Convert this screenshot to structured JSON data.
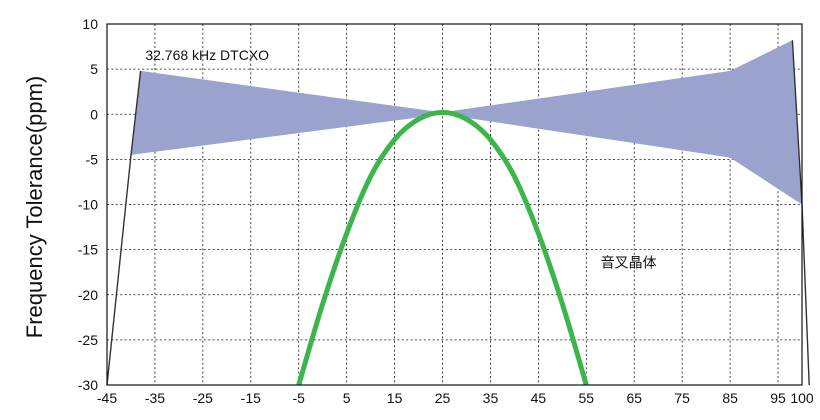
{
  "chart_data": {
    "type": "area",
    "title": "",
    "xlabel": "",
    "ylabel": "Frequency Tolerance(ppm)",
    "xlim": [
      -45,
      100
    ],
    "ylim": [
      -30,
      10
    ],
    "x_ticks": [
      -45,
      -35,
      -25,
      -15,
      -5,
      5,
      15,
      25,
      35,
      45,
      55,
      65,
      75,
      85,
      95,
      100
    ],
    "x_tick_labels": [
      "-45",
      "-35",
      "-25",
      "-15",
      "-5",
      "5",
      "15",
      "25",
      "35",
      "45",
      "55",
      "65",
      "75",
      "85",
      "95",
      "100"
    ],
    "y_ticks": [
      10,
      5,
      0,
      -5,
      -10,
      -15,
      -20,
      -25,
      -30
    ],
    "y_tick_labels": [
      "10",
      "5",
      "0",
      "-5",
      "-10",
      "-15",
      "-20",
      "-25",
      "-30"
    ],
    "grid": true,
    "series": [
      {
        "name": "32.768 kHz  DTCXO",
        "kind": "band",
        "color": "#9aa3cd",
        "upper": [
          [
            -38,
            4.8
          ],
          [
            25,
            0.2
          ],
          [
            85,
            4.8
          ],
          [
            98,
            8.2
          ],
          [
            100,
            -10
          ]
        ],
        "lower": [
          [
            -40,
            -4.5
          ],
          [
            25,
            0
          ],
          [
            85,
            -4.8
          ],
          [
            100,
            -10
          ]
        ]
      },
      {
        "name": "",
        "kind": "outline",
        "color": "#333333",
        "points": [
          [
            -45,
            -30
          ],
          [
            -40,
            -4.5
          ],
          [
            -38,
            4.8
          ]
        ]
      },
      {
        "name": "",
        "kind": "outline",
        "color": "#333333",
        "points": [
          [
            98,
            8.2
          ],
          [
            100,
            -10
          ],
          [
            101.5,
            -30
          ]
        ]
      },
      {
        "name": "音叉晶体",
        "kind": "line",
        "color": "#3cb54a",
        "x": [
          -5,
          0,
          5,
          10,
          15,
          20,
          25,
          30,
          35,
          40,
          45,
          50,
          55
        ],
        "y": [
          -30,
          -21,
          -13.2,
          -6.9,
          -2.8,
          -0.55,
          0.2,
          -0.55,
          -2.8,
          -6.9,
          -13.2,
          -21,
          -30
        ]
      }
    ],
    "annotations": [
      {
        "text": "32.768 kHz  DTCXO",
        "x": -37,
        "y": 6.0
      },
      {
        "text": "音叉晶体",
        "x": 58,
        "y": -17
      }
    ]
  }
}
